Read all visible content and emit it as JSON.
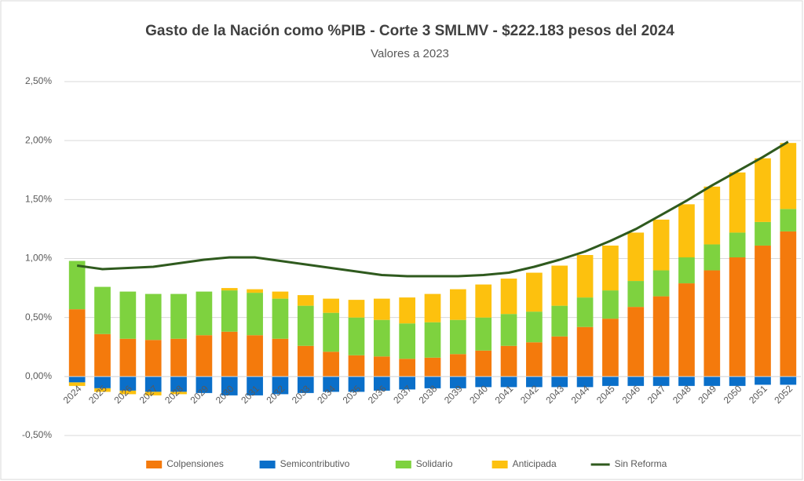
{
  "chart_data": {
    "type": "bar",
    "stacked": true,
    "title": "Gasto de la Nación como %PIB - Corte 3 SMLMV - $222.183 pesos del 2024",
    "subtitle": "Valores a 2023",
    "categories": [
      "2024",
      "2025",
      "2026",
      "2027",
      "2028",
      "2029",
      "2030",
      "2031",
      "2032",
      "2033",
      "2034",
      "2035",
      "2036",
      "2037",
      "2038",
      "2039",
      "2040",
      "2041",
      "2042",
      "2043",
      "2044",
      "2045",
      "2046",
      "2047",
      "2048",
      "2049",
      "2050",
      "2051",
      "2052"
    ],
    "series": [
      {
        "name": "Colpensiones",
        "color": "#f47a0c",
        "type": "bar",
        "values": [
          0.57,
          0.36,
          0.32,
          0.31,
          0.32,
          0.35,
          0.38,
          0.35,
          0.32,
          0.26,
          0.21,
          0.18,
          0.17,
          0.15,
          0.16,
          0.19,
          0.22,
          0.26,
          0.29,
          0.34,
          0.42,
          0.49,
          0.59,
          0.68,
          0.79,
          0.9,
          1.01,
          1.11,
          1.23
        ]
      },
      {
        "name": "Semicontributivo",
        "color": "#0a6fc9",
        "type": "bar",
        "values": [
          -0.05,
          -0.1,
          -0.12,
          -0.13,
          -0.13,
          -0.14,
          -0.16,
          -0.16,
          -0.15,
          -0.14,
          -0.13,
          -0.13,
          -0.12,
          -0.11,
          -0.1,
          -0.1,
          -0.09,
          -0.09,
          -0.09,
          -0.09,
          -0.09,
          -0.08,
          -0.08,
          -0.08,
          -0.08,
          -0.08,
          -0.08,
          -0.07,
          -0.07
        ]
      },
      {
        "name": "Solidario",
        "color": "#7ed23f",
        "type": "bar",
        "values": [
          0.41,
          0.4,
          0.4,
          0.39,
          0.38,
          0.37,
          0.35,
          0.36,
          0.34,
          0.34,
          0.33,
          0.32,
          0.31,
          0.3,
          0.3,
          0.29,
          0.28,
          0.27,
          0.26,
          0.26,
          0.25,
          0.24,
          0.22,
          0.22,
          0.22,
          0.22,
          0.21,
          0.2,
          0.19
        ]
      },
      {
        "name": "Anticipada",
        "color": "#fdc10e",
        "type": "bar",
        "values": [
          -0.03,
          -0.03,
          -0.03,
          -0.03,
          -0.02,
          0,
          0.02,
          0.03,
          0.06,
          0.09,
          0.12,
          0.15,
          0.18,
          0.22,
          0.24,
          0.26,
          0.28,
          0.3,
          0.33,
          0.34,
          0.36,
          0.38,
          0.41,
          0.43,
          0.45,
          0.49,
          0.51,
          0.54,
          0.56
        ]
      },
      {
        "name": "Sin Reforma",
        "color": "#2f5a1e",
        "type": "line",
        "values": [
          0.94,
          0.91,
          0.92,
          0.93,
          0.96,
          0.99,
          1.01,
          1.01,
          0.98,
          0.95,
          0.92,
          0.89,
          0.86,
          0.85,
          0.85,
          0.85,
          0.86,
          0.88,
          0.93,
          0.99,
          1.06,
          1.15,
          1.25,
          1.37,
          1.49,
          1.62,
          1.74,
          1.86,
          1.99
        ]
      }
    ],
    "ylim": [
      -0.5,
      2.5
    ],
    "yticks": [
      {
        "value": -0.5,
        "label": "-0,50%"
      },
      {
        "value": 0,
        "label": "0,00%"
      },
      {
        "value": 0.5,
        "label": "0,50%"
      },
      {
        "value": 1,
        "label": "1,00%"
      },
      {
        "value": 1.5,
        "label": "1,50%"
      },
      {
        "value": 2,
        "label": "2,00%"
      },
      {
        "value": 2.5,
        "label": "2,50%"
      }
    ],
    "grid": true,
    "legend": "bottom"
  }
}
